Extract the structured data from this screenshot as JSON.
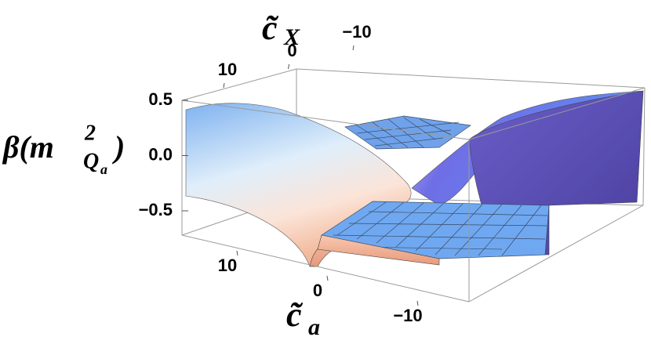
{
  "chart_data": {
    "type": "surface3d",
    "xlabel": [
      "c̃",
      "a"
    ],
    "ylabel": [
      "c̃",
      "X"
    ],
    "zlabel": [
      "β(m",
      "2",
      "Q",
      "a",
      ")"
    ],
    "xlim": [
      -15,
      15
    ],
    "xticks": [
      {
        "value": -10,
        "label": "−10"
      },
      0,
      10
    ],
    "ylim": [
      -15,
      15
    ],
    "yticks": [
      {
        "value": -10,
        "label": "−10"
      },
      0,
      10
    ],
    "zlim": [
      -0.72,
      0.5
    ],
    "zticks": [
      0.5,
      {
        "value": 0,
        "label": "0.0"
      },
      {
        "value": -0.5,
        "label": "−0.5"
      }
    ]
  }
}
